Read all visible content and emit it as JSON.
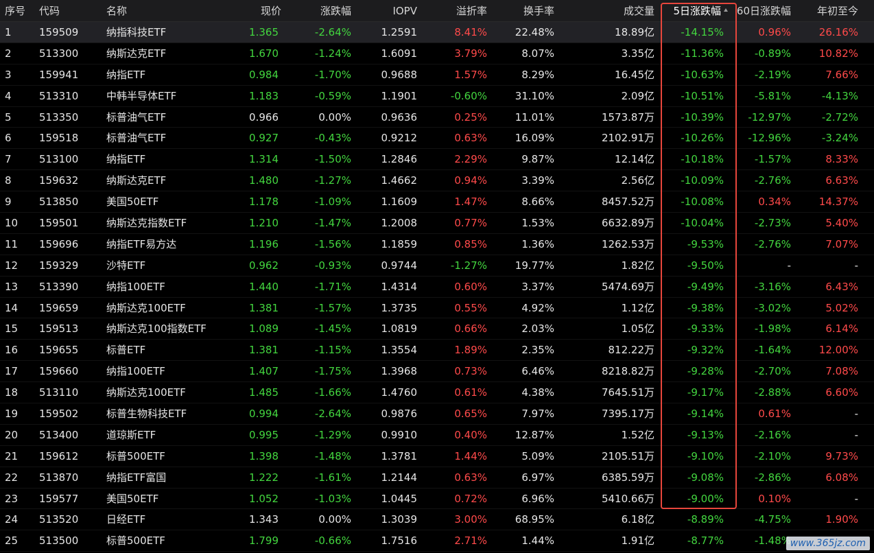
{
  "colors": {
    "background": "#000000",
    "header_background": "#1c1c1e",
    "selected_row": "#222226",
    "rise": "#ff4a4a",
    "fall": "#43d63f",
    "neutral": "#e6e6e6",
    "highlight_border": "#e8463c"
  },
  "header": {
    "idx": "序号",
    "code": "代码",
    "name": "名称",
    "price": "现价",
    "change": "涨跌幅",
    "iopv": "IOPV",
    "premium": "溢折率",
    "turnover": "换手率",
    "volume": "成交量",
    "d5": "5日涨跌幅",
    "d60": "60日涨跌幅",
    "ytd": "年初至今",
    "sort_icon": "sort-ascending-icon"
  },
  "rows": [
    {
      "idx": "1",
      "code": "159509",
      "name": "纳指科技ETF",
      "price": "1.365",
      "change": "-2.64%",
      "iopv": "1.2591",
      "premium": "8.41%",
      "turnover": "22.48%",
      "volume": "18.89亿",
      "d5": "-14.15%",
      "d60": "0.96%",
      "ytd": "26.16%"
    },
    {
      "idx": "2",
      "code": "513300",
      "name": "纳斯达克ETF",
      "price": "1.670",
      "change": "-1.24%",
      "iopv": "1.6091",
      "premium": "3.79%",
      "turnover": "8.07%",
      "volume": "3.35亿",
      "d5": "-11.36%",
      "d60": "-0.89%",
      "ytd": "10.82%"
    },
    {
      "idx": "3",
      "code": "159941",
      "name": "纳指ETF",
      "price": "0.984",
      "change": "-1.70%",
      "iopv": "0.9688",
      "premium": "1.57%",
      "turnover": "8.29%",
      "volume": "16.45亿",
      "d5": "-10.63%",
      "d60": "-2.19%",
      "ytd": "7.66%"
    },
    {
      "idx": "4",
      "code": "513310",
      "name": "中韩半导体ETF",
      "price": "1.183",
      "change": "-0.59%",
      "iopv": "1.1901",
      "premium": "-0.60%",
      "turnover": "31.10%",
      "volume": "2.09亿",
      "d5": "-10.51%",
      "d60": "-5.81%",
      "ytd": "-4.13%"
    },
    {
      "idx": "5",
      "code": "513350",
      "name": "标普油气ETF",
      "price": "0.966",
      "change": "0.00%",
      "iopv": "0.9636",
      "premium": "0.25%",
      "turnover": "11.01%",
      "volume": "1573.87万",
      "d5": "-10.39%",
      "d60": "-12.97%",
      "ytd": "-2.72%"
    },
    {
      "idx": "6",
      "code": "159518",
      "name": "标普油气ETF",
      "price": "0.927",
      "change": "-0.43%",
      "iopv": "0.9212",
      "premium": "0.63%",
      "turnover": "16.09%",
      "volume": "2102.91万",
      "d5": "-10.26%",
      "d60": "-12.96%",
      "ytd": "-3.24%"
    },
    {
      "idx": "7",
      "code": "513100",
      "name": "纳指ETF",
      "price": "1.314",
      "change": "-1.50%",
      "iopv": "1.2846",
      "premium": "2.29%",
      "turnover": "9.87%",
      "volume": "12.14亿",
      "d5": "-10.18%",
      "d60": "-1.57%",
      "ytd": "8.33%"
    },
    {
      "idx": "8",
      "code": "159632",
      "name": "纳斯达克ETF",
      "price": "1.480",
      "change": "-1.27%",
      "iopv": "1.4662",
      "premium": "0.94%",
      "turnover": "3.39%",
      "volume": "2.56亿",
      "d5": "-10.09%",
      "d60": "-2.76%",
      "ytd": "6.63%"
    },
    {
      "idx": "9",
      "code": "513850",
      "name": "美国50ETF",
      "price": "1.178",
      "change": "-1.09%",
      "iopv": "1.1609",
      "premium": "1.47%",
      "turnover": "8.66%",
      "volume": "8457.52万",
      "d5": "-10.08%",
      "d60": "0.34%",
      "ytd": "14.37%"
    },
    {
      "idx": "10",
      "code": "159501",
      "name": "纳斯达克指数ETF",
      "price": "1.210",
      "change": "-1.47%",
      "iopv": "1.2008",
      "premium": "0.77%",
      "turnover": "1.53%",
      "volume": "6632.89万",
      "d5": "-10.04%",
      "d60": "-2.73%",
      "ytd": "5.40%"
    },
    {
      "idx": "11",
      "code": "159696",
      "name": "纳指ETF易方达",
      "price": "1.196",
      "change": "-1.56%",
      "iopv": "1.1859",
      "premium": "0.85%",
      "turnover": "1.36%",
      "volume": "1262.53万",
      "d5": "-9.53%",
      "d60": "-2.76%",
      "ytd": "7.07%"
    },
    {
      "idx": "12",
      "code": "159329",
      "name": "沙特ETF",
      "price": "0.962",
      "change": "-0.93%",
      "iopv": "0.9744",
      "premium": "-1.27%",
      "turnover": "19.77%",
      "volume": "1.82亿",
      "d5": "-9.50%",
      "d60": "-",
      "ytd": "-"
    },
    {
      "idx": "13",
      "code": "513390",
      "name": "纳指100ETF",
      "price": "1.440",
      "change": "-1.71%",
      "iopv": "1.4314",
      "premium": "0.60%",
      "turnover": "3.37%",
      "volume": "5474.69万",
      "d5": "-9.49%",
      "d60": "-3.16%",
      "ytd": "6.43%"
    },
    {
      "idx": "14",
      "code": "159659",
      "name": "纳斯达克100ETF",
      "price": "1.381",
      "change": "-1.57%",
      "iopv": "1.3735",
      "premium": "0.55%",
      "turnover": "4.92%",
      "volume": "1.12亿",
      "d5": "-9.38%",
      "d60": "-3.02%",
      "ytd": "5.02%"
    },
    {
      "idx": "15",
      "code": "159513",
      "name": "纳斯达克100指数ETF",
      "price": "1.089",
      "change": "-1.45%",
      "iopv": "1.0819",
      "premium": "0.66%",
      "turnover": "2.03%",
      "volume": "1.05亿",
      "d5": "-9.33%",
      "d60": "-1.98%",
      "ytd": "6.14%"
    },
    {
      "idx": "16",
      "code": "159655",
      "name": "标普ETF",
      "price": "1.381",
      "change": "-1.15%",
      "iopv": "1.3554",
      "premium": "1.89%",
      "turnover": "2.35%",
      "volume": "812.22万",
      "d5": "-9.32%",
      "d60": "-1.64%",
      "ytd": "12.00%"
    },
    {
      "idx": "17",
      "code": "159660",
      "name": "纳指100ETF",
      "price": "1.407",
      "change": "-1.75%",
      "iopv": "1.3968",
      "premium": "0.73%",
      "turnover": "6.46%",
      "volume": "8218.82万",
      "d5": "-9.28%",
      "d60": "-2.70%",
      "ytd": "7.08%"
    },
    {
      "idx": "18",
      "code": "513110",
      "name": "纳斯达克100ETF",
      "price": "1.485",
      "change": "-1.66%",
      "iopv": "1.4760",
      "premium": "0.61%",
      "turnover": "4.38%",
      "volume": "7645.51万",
      "d5": "-9.17%",
      "d60": "-2.88%",
      "ytd": "6.60%"
    },
    {
      "idx": "19",
      "code": "159502",
      "name": "标普生物科技ETF",
      "price": "0.994",
      "change": "-2.64%",
      "iopv": "0.9876",
      "premium": "0.65%",
      "turnover": "7.97%",
      "volume": "7395.17万",
      "d5": "-9.14%",
      "d60": "0.61%",
      "ytd": "-"
    },
    {
      "idx": "20",
      "code": "513400",
      "name": "道琼斯ETF",
      "price": "0.995",
      "change": "-1.29%",
      "iopv": "0.9910",
      "premium": "0.40%",
      "turnover": "12.87%",
      "volume": "1.52亿",
      "d5": "-9.13%",
      "d60": "-2.16%",
      "ytd": "-"
    },
    {
      "idx": "21",
      "code": "159612",
      "name": "标普500ETF",
      "price": "1.398",
      "change": "-1.48%",
      "iopv": "1.3781",
      "premium": "1.44%",
      "turnover": "5.09%",
      "volume": "2105.51万",
      "d5": "-9.10%",
      "d60": "-2.10%",
      "ytd": "9.73%"
    },
    {
      "idx": "22",
      "code": "513870",
      "name": "纳指ETF富国",
      "price": "1.222",
      "change": "-1.61%",
      "iopv": "1.2144",
      "premium": "0.63%",
      "turnover": "6.97%",
      "volume": "6385.59万",
      "d5": "-9.08%",
      "d60": "-2.86%",
      "ytd": "6.08%"
    },
    {
      "idx": "23",
      "code": "159577",
      "name": "美国50ETF",
      "price": "1.052",
      "change": "-1.03%",
      "iopv": "1.0445",
      "premium": "0.72%",
      "turnover": "6.96%",
      "volume": "5410.66万",
      "d5": "-9.00%",
      "d60": "0.10%",
      "ytd": "-"
    },
    {
      "idx": "24",
      "code": "513520",
      "name": "日经ETF",
      "price": "1.343",
      "change": "0.00%",
      "iopv": "1.3039",
      "premium": "3.00%",
      "turnover": "68.95%",
      "volume": "6.18亿",
      "d5": "-8.89%",
      "d60": "-4.75%",
      "ytd": "1.90%"
    },
    {
      "idx": "25",
      "code": "513500",
      "name": "标普500ETF",
      "price": "1.799",
      "change": "-0.66%",
      "iopv": "1.7516",
      "premium": "2.71%",
      "turnover": "1.44%",
      "volume": "1.91亿",
      "d5": "-8.77%",
      "d60": "-1.48%",
      "ytd": ""
    }
  ],
  "watermark": "www.365jz.com"
}
